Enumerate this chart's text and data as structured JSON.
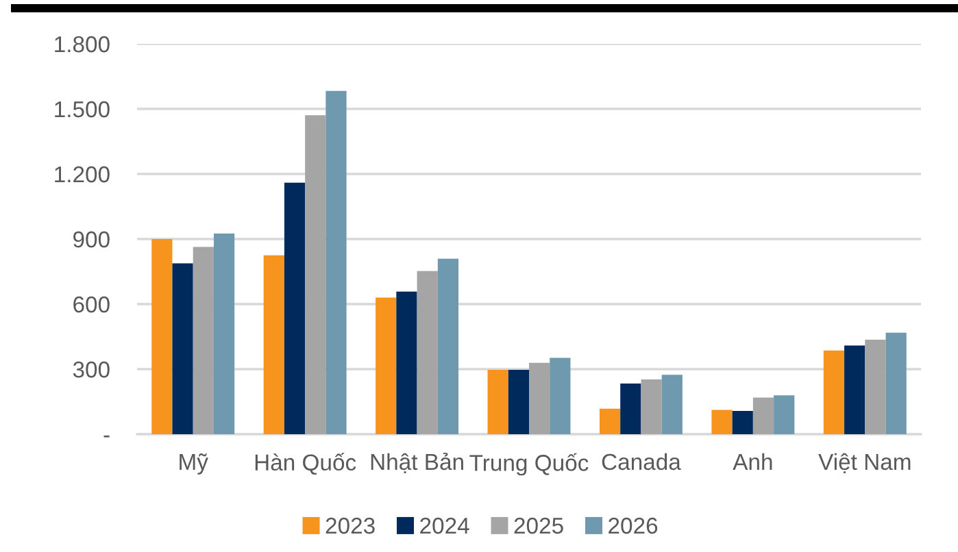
{
  "chart_data": {
    "type": "bar",
    "categories": [
      "Mỹ",
      "Hàn Quốc",
      "Nhật Bản",
      "Trung Quốc",
      "Canada",
      "Anh",
      "Việt Nam"
    ],
    "series": [
      {
        "name": "2023",
        "color": "#f7941d",
        "values": [
          900,
          825,
          630,
          297,
          118,
          112,
          386
        ]
      },
      {
        "name": "2024",
        "color": "#002a5c",
        "values": [
          788,
          1160,
          658,
          297,
          234,
          107,
          409
        ]
      },
      {
        "name": "2025",
        "color": "#a5a5a5",
        "values": [
          864,
          1471,
          752,
          329,
          253,
          169,
          436
        ]
      },
      {
        "name": "2026",
        "color": "#6e99ae",
        "values": [
          925,
          1583,
          809,
          352,
          274,
          179,
          468
        ]
      }
    ],
    "ylim": [
      0,
      1800
    ],
    "yticks": [
      {
        "value": 0,
        "label": "-"
      },
      {
        "value": 300,
        "label": "300"
      },
      {
        "value": 600,
        "label": "600"
      },
      {
        "value": 900,
        "label": "900"
      },
      {
        "value": 1200,
        "label": "1.200"
      },
      {
        "value": 1500,
        "label": "1.500"
      },
      {
        "value": 1800,
        "label": "1.800"
      }
    ],
    "grid": "y",
    "legend": "bottom"
  }
}
